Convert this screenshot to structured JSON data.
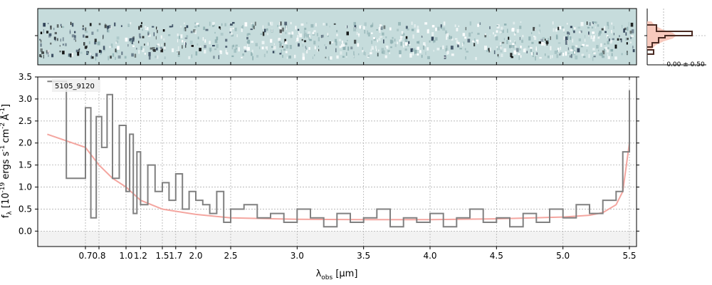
{
  "chart_data": [
    {
      "type": "heatmap",
      "panel": "2d-spectrum",
      "description_colors": {
        "background": "#c6dcdc",
        "dark": "#000000",
        "mid": "#6f8f98"
      }
    },
    {
      "type": "histogram",
      "panel": "pixel-distribution",
      "annotation": "0.00 ± 0.50",
      "colors": {
        "fill": "#f7c9bd",
        "step": "#4a2a22"
      }
    },
    {
      "type": "line",
      "panel": "1d-spectrum",
      "label": "5105_9120",
      "xlabel_main": "λ",
      "xlabel_sub": "obs",
      "xlabel_unit": " [μm]",
      "ylabel_main": "f",
      "ylabel_sub": "λ",
      "ylabel_rest": " [10",
      "ylabel_exp": "-19",
      "ylabel_units": " ergs s",
      "ylabel_unit_exp1": "-1",
      "ylabel_cm": "cm",
      "ylabel_unit_exp2": "-2",
      "ylabel_A": "Å",
      "ylabel_unit_exp3": "-1",
      "ylabel_end": "]",
      "xticks": [
        "0.7",
        "0.8",
        "1.0",
        "1.2",
        "1.5",
        "1.7",
        "2.0",
        "2.5",
        "3.0",
        "3.5",
        "4.0",
        "4.5",
        "5.0",
        "5.5"
      ],
      "xtick_values": [
        0.7,
        0.8,
        1.0,
        1.2,
        1.5,
        1.7,
        2.0,
        2.5,
        3.0,
        3.5,
        4.0,
        4.5,
        5.0,
        5.5
      ],
      "yticks": [
        "0.0",
        "0.5",
        "1.0",
        "1.5",
        "2.0",
        "2.5",
        "3.0",
        "3.5"
      ],
      "ytick_values": [
        0.0,
        0.5,
        1.0,
        1.5,
        2.0,
        2.5,
        3.0,
        3.5
      ],
      "ylim": [
        -0.35,
        3.5
      ],
      "xlim": [
        0.6,
        5.52
      ],
      "grid": true,
      "colors": {
        "data": "#808080",
        "model": "#f4a6a0"
      },
      "series": [
        {
          "role": "data",
          "x": [
            0.62,
            0.66,
            0.7,
            0.74,
            0.78,
            0.82,
            0.86,
            0.9,
            0.95,
            1.0,
            1.05,
            1.1,
            1.15,
            1.2,
            1.3,
            1.4,
            1.5,
            1.6,
            1.7,
            1.8,
            1.9,
            2.0,
            2.1,
            2.2,
            2.3,
            2.4,
            2.5,
            2.6,
            2.7,
            2.8,
            2.9,
            3.0,
            3.1,
            3.2,
            3.3,
            3.4,
            3.5,
            3.6,
            3.7,
            3.8,
            3.9,
            4.0,
            4.1,
            4.2,
            4.3,
            4.4,
            4.5,
            4.6,
            4.7,
            4.8,
            4.9,
            5.0,
            5.1,
            5.2,
            5.3,
            5.4,
            5.45,
            5.5
          ],
          "y": [
            3.4,
            1.2,
            2.8,
            0.3,
            2.6,
            1.9,
            3.1,
            1.2,
            2.4,
            0.9,
            2.2,
            0.4,
            1.8,
            0.6,
            1.5,
            0.9,
            1.1,
            0.7,
            1.3,
            0.5,
            0.9,
            0.7,
            0.6,
            0.4,
            0.9,
            0.2,
            0.5,
            0.6,
            0.3,
            0.4,
            0.2,
            0.5,
            0.3,
            0.1,
            0.4,
            0.2,
            0.3,
            0.5,
            0.1,
            0.3,
            0.2,
            0.4,
            0.1,
            0.3,
            0.5,
            0.2,
            0.3,
            0.1,
            0.4,
            0.2,
            0.5,
            0.3,
            0.6,
            0.4,
            0.7,
            0.9,
            1.8,
            3.2
          ]
        },
        {
          "role": "model",
          "x": [
            0.62,
            0.7,
            0.8,
            0.9,
            1.0,
            1.2,
            1.5,
            1.7,
            2.0,
            2.5,
            3.0,
            3.5,
            4.0,
            4.5,
            5.0,
            5.2,
            5.3,
            5.4,
            5.45,
            5.5
          ],
          "y": [
            2.2,
            1.9,
            1.5,
            1.2,
            1.0,
            0.7,
            0.5,
            0.45,
            0.38,
            0.3,
            0.27,
            0.26,
            0.26,
            0.28,
            0.32,
            0.36,
            0.42,
            0.6,
            0.9,
            2.0
          ]
        }
      ]
    }
  ]
}
